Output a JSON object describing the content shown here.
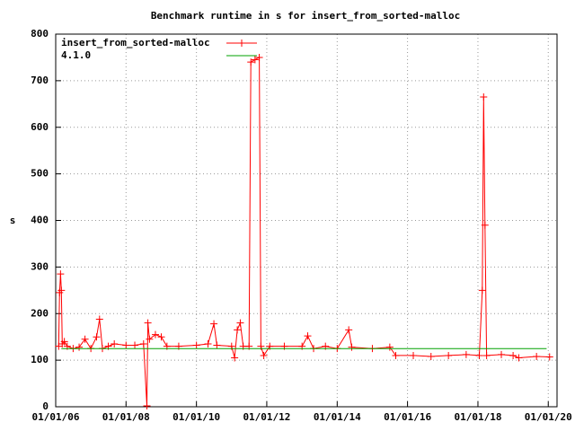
{
  "chart_data": {
    "type": "line",
    "title": "Benchmark runtime in s for insert_from_sorted-malloc",
    "y_label": "s",
    "grid": true,
    "legend": "top-left",
    "xlim": [
      "2006-01-01",
      "2020-04-01"
    ],
    "ylim": [
      0,
      800
    ],
    "yticks": [
      0,
      100,
      200,
      300,
      400,
      500,
      600,
      700,
      800
    ],
    "xticks": [
      {
        "value": "2006-01-01",
        "label": "01/01/06"
      },
      {
        "value": "2008-01-01",
        "label": "01/01/08"
      },
      {
        "value": "2010-01-01",
        "label": "01/01/10"
      },
      {
        "value": "2012-01-01",
        "label": "01/01/12"
      },
      {
        "value": "2014-01-01",
        "label": "01/01/14"
      },
      {
        "value": "2016-01-01",
        "label": "01/01/16"
      },
      {
        "value": "2018-01-01",
        "label": "01/01/18"
      },
      {
        "value": "2020-01-01",
        "label": "01/01/20"
      }
    ],
    "series": [
      {
        "name": "insert_from_sorted-malloc",
        "color": "#ff0000",
        "marker": "plus",
        "x": [
          "2006-02-01",
          "2006-02-10",
          "2006-02-20",
          "2006-03-01",
          "2006-03-10",
          "2006-04-01",
          "2006-05-01",
          "2006-07-01",
          "2006-09-01",
          "2006-11-01",
          "2007-01-01",
          "2007-03-01",
          "2007-04-01",
          "2007-05-01",
          "2007-07-01",
          "2007-09-01",
          "2008-01-01",
          "2008-04-01",
          "2008-07-01",
          "2008-08-05",
          "2008-08-15",
          "2008-09-01",
          "2008-11-01",
          "2009-01-01",
          "2009-03-01",
          "2009-07-01",
          "2010-01-01",
          "2010-05-01",
          "2010-07-01",
          "2010-08-01",
          "2011-01-01",
          "2011-02-01",
          "2011-03-01",
          "2011-04-01",
          "2011-05-01",
          "2011-07-01",
          "2011-07-20",
          "2011-09-01",
          "2011-10-15",
          "2011-11-01",
          "2011-12-01",
          "2012-02-01",
          "2012-07-01",
          "2013-01-01",
          "2013-03-01",
          "2013-05-01",
          "2013-09-01",
          "2014-01-01",
          "2014-05-01",
          "2014-06-01",
          "2015-01-01",
          "2015-07-01",
          "2015-09-01",
          "2016-03-01",
          "2016-09-01",
          "2017-03-01",
          "2017-09-01",
          "2018-01-15",
          "2018-02-15",
          "2018-03-01",
          "2018-03-15",
          "2018-04-01",
          "2018-09-01",
          "2019-01-01",
          "2019-03-01",
          "2019-09-01",
          "2020-01-15"
        ],
        "values": [
          130,
          245,
          285,
          250,
          135,
          140,
          130,
          125,
          128,
          145,
          125,
          150,
          188,
          125,
          130,
          135,
          132,
          132,
          135,
          2,
          180,
          145,
          155,
          150,
          130,
          130,
          132,
          135,
          178,
          132,
          130,
          105,
          165,
          180,
          130,
          130,
          740,
          745,
          750,
          130,
          110,
          130,
          130,
          130,
          152,
          125,
          130,
          125,
          165,
          128,
          125,
          128,
          110,
          110,
          108,
          110,
          112,
          110,
          250,
          665,
          390,
          110,
          112,
          110,
          105,
          108,
          107
        ]
      },
      {
        "name": "4.1.0",
        "color": "#00a000",
        "marker": "none",
        "x": [
          "2006-03-01",
          "2019-12-15"
        ],
        "values": [
          125,
          125
        ]
      }
    ]
  }
}
